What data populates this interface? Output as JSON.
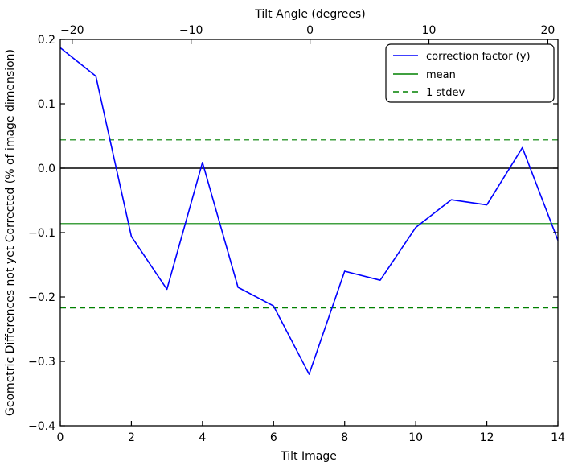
{
  "chart_data": {
    "type": "line",
    "title_top": "Tilt Angle (degrees)",
    "xlabel": "Tilt Image",
    "ylabel": "Geometric Differences not yet Corrected (% of image dimension)",
    "x": [
      0,
      1,
      2,
      3,
      4,
      5,
      6,
      7,
      8,
      9,
      10,
      11,
      12,
      13,
      14
    ],
    "series": [
      {
        "name": "correction factor (y)",
        "color": "#0000ff",
        "style": "solid",
        "values": [
          0.187,
          0.143,
          -0.106,
          -0.188,
          0.009,
          -0.185,
          -0.214,
          -0.32,
          -0.16,
          -0.174,
          -0.092,
          -0.049,
          -0.057,
          0.032,
          -0.112
        ]
      }
    ],
    "reference_lines": [
      {
        "name": "zero",
        "y": 0.0,
        "color": "#000000",
        "style": "solid",
        "width": 1.4
      },
      {
        "name": "mean",
        "y": -0.086,
        "color": "#008000",
        "style": "solid",
        "width": 1.2
      },
      {
        "name": "stdev-upper",
        "y": 0.044,
        "color": "#008000",
        "style": "dashed",
        "width": 1.2
      },
      {
        "name": "stdev-lower",
        "y": -0.217,
        "color": "#008000",
        "style": "dashed",
        "width": 1.2
      }
    ],
    "xlim": [
      0,
      14
    ],
    "ylim": [
      -0.4,
      0.2
    ],
    "x2lim": [
      -21,
      20.85
    ],
    "xticks": [
      0,
      2,
      4,
      6,
      8,
      10,
      12,
      14
    ],
    "yticks": [
      0.2,
      0.1,
      0.0,
      -0.1,
      -0.2,
      -0.3,
      -0.4
    ],
    "x2ticks": [
      -20,
      -10,
      0,
      10,
      20
    ],
    "legend": {
      "position": "upper right",
      "entries": [
        {
          "label": "correction factor (y)",
          "color": "#0000ff",
          "style": "solid"
        },
        {
          "label": "mean",
          "color": "#008000",
          "style": "solid"
        },
        {
          "label": "1 stdev",
          "color": "#008000",
          "style": "dashed"
        }
      ]
    },
    "grid": false,
    "background": "#ffffff",
    "line_color_blue": "#0000ff",
    "line_color_green": "#008000",
    "axis_color": "#000000"
  }
}
